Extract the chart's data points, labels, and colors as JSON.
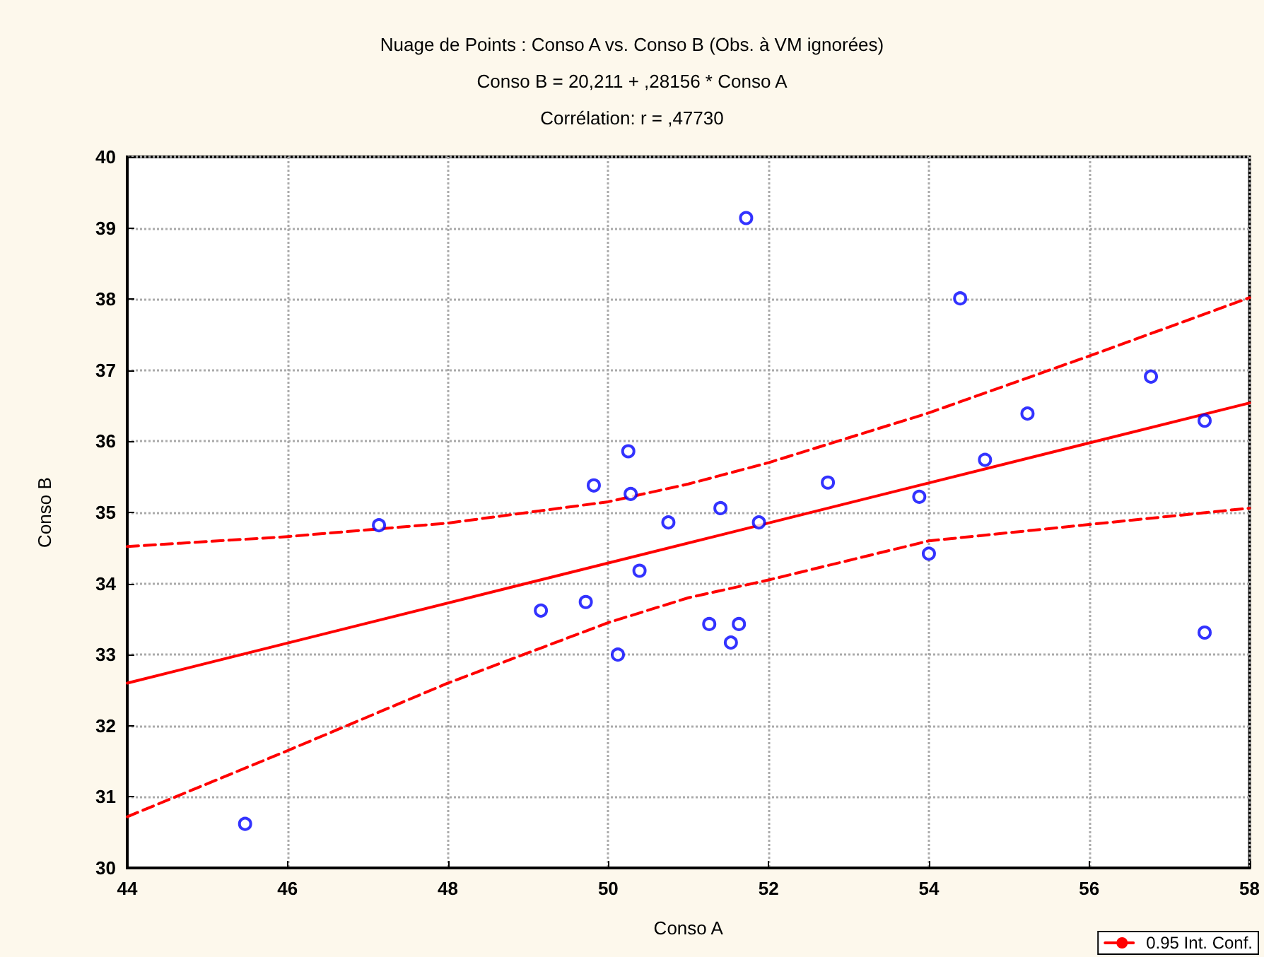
{
  "chart_data": {
    "type": "scatter",
    "title": "Nuage de Points : Conso A vs. Conso B (Obs. à VM ignorées)",
    "subtitle": "Conso B = 20,211 + ,28156 * Conso A\nCorrélation: r = ,47730",
    "xlabel": "Conso A",
    "ylabel": "Conso B",
    "xlim": [
      44,
      58
    ],
    "xticks": [
      44,
      46,
      48,
      50,
      52,
      54,
      56,
      58
    ],
    "ylim": [
      30,
      40
    ],
    "yticks": [
      30,
      31,
      32,
      33,
      34,
      35,
      36,
      37,
      38,
      39,
      40
    ],
    "grid": true,
    "legend": "bottom right",
    "marker": "circle",
    "x": [
      45.47,
      47.14,
      49.16,
      49.72,
      49.82,
      50.12,
      50.25,
      50.28,
      50.39,
      50.75,
      51.26,
      51.4,
      51.53,
      51.63,
      51.88,
      51.72,
      52.74,
      53.88,
      54.0,
      54.39,
      54.7,
      55.23,
      56.77,
      57.44,
      57.44
    ],
    "series": [
      {
        "color": "#0000ff",
        "values": [
          30.62,
          34.82,
          33.62,
          33.74,
          35.38,
          33.0,
          35.86,
          35.26,
          34.18,
          34.86,
          33.43,
          35.06,
          33.17,
          33.43,
          34.86,
          39.14,
          35.42,
          35.22,
          34.42,
          38.01,
          35.74,
          36.39,
          36.91,
          36.29,
          33.31
        ]
      },
      {
        "type": "line",
        "color": "#ff0000",
        "marker": "none",
        "line_style": "solid",
        "x": [
          44,
          58
        ],
        "values": [
          32.6,
          36.54
        ]
      },
      {
        "type": "line",
        "name": "0.95 Int. Conf.",
        "color": "#ff0000",
        "marker": "none",
        "line_style": "dashed",
        "x": [
          44,
          46,
          48,
          50,
          51,
          52,
          54,
          56,
          58
        ],
        "values": [
          34.52,
          34.66,
          34.85,
          35.15,
          35.4,
          35.7,
          36.4,
          37.2,
          38.02
        ]
      },
      {
        "type": "line",
        "color": "#ff0000",
        "marker": "none",
        "line_style": "dashed",
        "x": [
          44,
          46,
          48,
          50,
          51,
          52,
          54,
          56,
          58
        ],
        "values": [
          30.72,
          31.65,
          32.6,
          33.45,
          33.8,
          34.05,
          34.6,
          34.83,
          35.06
        ]
      }
    ]
  }
}
